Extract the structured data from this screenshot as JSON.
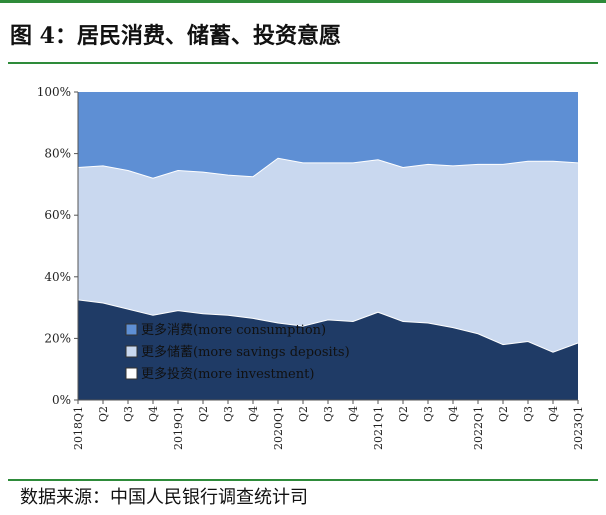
{
  "header": {
    "title": "图 4：居民消费、储蓄、投资意愿"
  },
  "footer": {
    "source": "数据来源：中国人民银行调查统计司"
  },
  "colors": {
    "accent": "#2e8b3a",
    "consumption": "#5e8fd4",
    "savings": "#c9d8ef",
    "investment": "#1f3b66"
  },
  "chart_data": {
    "type": "area",
    "stacked": true,
    "title": "图 4：居民消费、储蓄、投资意愿",
    "xlabel": "",
    "ylabel": "",
    "ylim": [
      0,
      100
    ],
    "yticks": [
      "0%",
      "20%",
      "40%",
      "60%",
      "80%",
      "100%"
    ],
    "categories": [
      "2018Q1",
      "Q2",
      "Q3",
      "Q4",
      "2019Q1",
      "Q2",
      "Q3",
      "Q4",
      "2020Q1",
      "Q2",
      "Q3",
      "Q4",
      "2021Q1",
      "Q2",
      "Q3",
      "Q4",
      "2022Q1",
      "Q2",
      "Q3",
      "Q4",
      "2023Q1"
    ],
    "series": [
      {
        "name": "更多投资(more investment)",
        "values": [
          32.5,
          31.5,
          29.5,
          27.5,
          29.0,
          28.0,
          27.5,
          26.5,
          25.0,
          24.0,
          26.0,
          25.5,
          28.5,
          25.5,
          25.0,
          23.5,
          21.5,
          18.0,
          19.0,
          15.5,
          18.5
        ]
      },
      {
        "name": "更多储蓄(more savings deposits)",
        "values": [
          43.0,
          44.5,
          45.0,
          44.5,
          45.5,
          46.0,
          45.5,
          46.0,
          53.5,
          53.0,
          51.0,
          51.5,
          49.5,
          50.0,
          51.5,
          52.5,
          55.0,
          58.5,
          58.5,
          62.0,
          58.5
        ]
      },
      {
        "name": "更多消费(more consumption)",
        "values": [
          24.5,
          24.0,
          25.5,
          28.0,
          25.5,
          26.0,
          27.0,
          27.5,
          21.5,
          23.0,
          23.0,
          23.0,
          22.0,
          24.5,
          23.5,
          24.0,
          23.5,
          23.5,
          22.5,
          22.5,
          23.0
        ]
      }
    ],
    "legend": [
      "更多消费(more consumption)",
      "更多储蓄(more savings deposits)",
      "更多投资(more investment)"
    ],
    "legend_position": "bottom-left"
  }
}
